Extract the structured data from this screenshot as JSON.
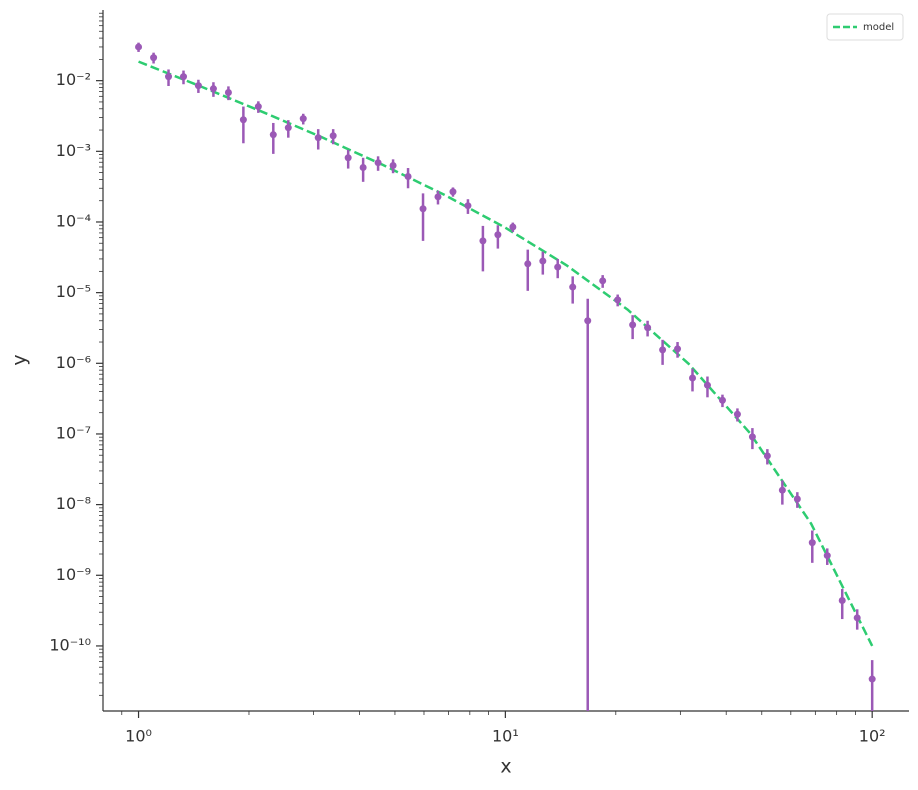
{
  "chart_data": {
    "type": "scatter",
    "xlabel": "x",
    "ylabel": "y",
    "xscale": "log",
    "yscale": "log",
    "xlim": [
      0.8,
      126
    ],
    "ylim": [
      1.2e-11,
      0.1
    ],
    "xticks": [
      {
        "value": 1,
        "label": "10⁰"
      },
      {
        "value": 10,
        "label": "10¹"
      },
      {
        "value": 100,
        "label": "10²"
      }
    ],
    "yticks": [
      {
        "value": 1e-10,
        "label": "10⁻¹⁰"
      },
      {
        "value": 1e-09,
        "label": "10⁻⁹"
      },
      {
        "value": 1e-08,
        "label": "10⁻⁸"
      },
      {
        "value": 1e-07,
        "label": "10⁻⁷"
      },
      {
        "value": 1e-06,
        "label": "10⁻⁶"
      },
      {
        "value": 1e-05,
        "label": "10⁻⁵"
      },
      {
        "value": 0.0001,
        "label": "10⁻⁴"
      },
      {
        "value": 0.001,
        "label": "10⁻³"
      },
      {
        "value": 0.01,
        "label": "10⁻²"
      }
    ],
    "legend": "upper right",
    "series": [
      {
        "name": "model",
        "type": "line",
        "linestyle": "dashed",
        "color": "#2ecc71",
        "x": [
          1,
          1.468,
          2.154,
          3.162,
          4.642,
          6.813,
          10,
          14.68,
          21.54,
          31.62,
          46.42,
          68.13,
          100
        ],
        "values": [
          0.0186,
          0.0084,
          0.0037,
          0.00158,
          0.00064,
          0.000243,
          8.3e-05,
          2.44e-05,
          5.75e-06,
          9.8e-07,
          1.03e-07,
          5.4e-09,
          1e-10
        ]
      },
      {
        "type": "errorbar",
        "color": "#9b59b6",
        "x": [
          1,
          1.099,
          1.207,
          1.326,
          1.456,
          1.6,
          1.758,
          1.931,
          2.121,
          2.33,
          2.56,
          2.812,
          3.089,
          3.393,
          3.728,
          4.095,
          4.498,
          4.942,
          5.429,
          5.964,
          6.551,
          7.197,
          7.906,
          8.685,
          9.541,
          10.48,
          11.51,
          12.65,
          13.89,
          15.26,
          16.77,
          18.42,
          20.24,
          22.23,
          24.42,
          26.83,
          29.47,
          32.37,
          35.56,
          39.07,
          42.92,
          47.15,
          51.79,
          56.9,
          62.51,
          68.66,
          75.43,
          82.86,
          91.03,
          100
        ],
        "values": [
          0.03,
          0.0212,
          0.0114,
          0.0114,
          0.0085,
          0.0077,
          0.0068,
          0.0028,
          0.0043,
          0.00172,
          0.00216,
          0.0029,
          0.00156,
          0.00166,
          0.00081,
          0.00059,
          0.00069,
          0.00063,
          0.00044,
          0.000154,
          0.000227,
          0.000268,
          0.00017,
          5.4e-05,
          6.6e-05,
          8.5e-05,
          2.56e-05,
          2.8e-05,
          2.3e-05,
          1.2e-05,
          4e-06,
          1.47e-05,
          7.9e-06,
          3.5e-06,
          3.2e-06,
          1.55e-06,
          1.6e-06,
          6.2e-07,
          4.9e-07,
          3e-07,
          1.9e-07,
          9.1e-08,
          4.9e-08,
          1.6e-08,
          1.2e-08,
          2.9e-09,
          1.9e-09,
          4.4e-10,
          2.5e-10,
          3.4e-11
        ],
        "yerr": [
          0.0045,
          0.0037,
          0.003,
          0.0025,
          0.0018,
          0.0018,
          0.0015,
          0.0015,
          0.0008,
          0.0008,
          0.0006,
          0.0005,
          0.0005,
          0.0004,
          0.00024,
          0.00022,
          0.00016,
          0.00014,
          0.00014,
          0.0001,
          5e-05,
          4e-05,
          4e-05,
          3.4e-05,
          2.4e-05,
          1.3e-05,
          1.5e-05,
          1e-05,
          7e-06,
          5e-06,
          4.2e-06,
          3e-06,
          1.5e-06,
          1.3e-06,
          8e-07,
          6e-07,
          4e-07,
          2.2e-07,
          1.6e-07,
          6e-08,
          4e-08,
          3e-08,
          1.2e-08,
          6e-09,
          3e-09,
          1.4e-09,
          5e-10,
          2e-10,
          8e-11,
          2.9e-11
        ]
      }
    ]
  }
}
